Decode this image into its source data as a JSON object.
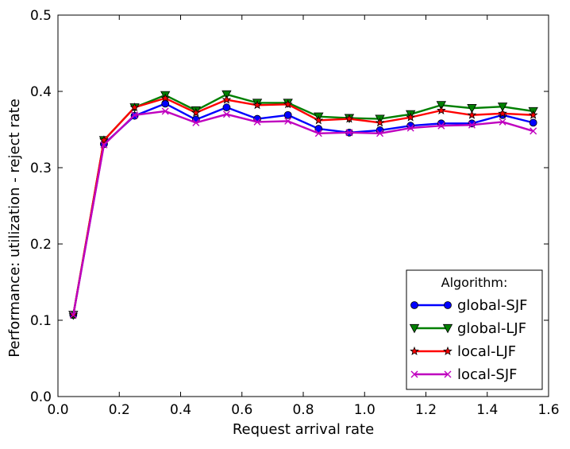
{
  "chart_data": {
    "type": "line",
    "xlabel": "Request arrival rate",
    "ylabel": "Performance: utilization - reject rate",
    "xlim": [
      0.0,
      1.6
    ],
    "ylim": [
      0.0,
      0.5
    ],
    "xticks": [
      "0.0",
      "0.2",
      "0.4",
      "0.6",
      "0.8",
      "1.0",
      "1.2",
      "1.4",
      "1.6"
    ],
    "yticks": [
      "0.0",
      "0.1",
      "0.2",
      "0.3",
      "0.4",
      "0.5"
    ],
    "grid": false,
    "legend": {
      "title": "Algorithm:",
      "placement": "lower-right"
    },
    "x": [
      0.05,
      0.15,
      0.25,
      0.35,
      0.45,
      0.55,
      0.65,
      0.75,
      0.85,
      0.95,
      1.05,
      1.15,
      1.25,
      1.35,
      1.45,
      1.55
    ],
    "series": [
      {
        "name": "global-SJF",
        "color": "#0000ff",
        "marker": "circle",
        "values": [
          0.107,
          0.331,
          0.368,
          0.384,
          0.363,
          0.379,
          0.364,
          0.369,
          0.351,
          0.346,
          0.349,
          0.355,
          0.358,
          0.358,
          0.369,
          0.359
        ]
      },
      {
        "name": "global-LJF",
        "color": "#008000",
        "marker": "triangle-down",
        "values": [
          0.107,
          0.336,
          0.379,
          0.395,
          0.375,
          0.396,
          0.385,
          0.385,
          0.367,
          0.365,
          0.364,
          0.37,
          0.382,
          0.378,
          0.38,
          0.374
        ]
      },
      {
        "name": "local-LJF",
        "color": "#ff0000",
        "marker": "star",
        "values": [
          0.107,
          0.336,
          0.379,
          0.391,
          0.372,
          0.389,
          0.382,
          0.383,
          0.362,
          0.364,
          0.359,
          0.366,
          0.375,
          0.369,
          0.371,
          0.369
        ]
      },
      {
        "name": "local-SJF",
        "color": "#bf00bf",
        "marker": "x",
        "values": [
          0.107,
          0.33,
          0.369,
          0.374,
          0.359,
          0.37,
          0.36,
          0.361,
          0.345,
          0.346,
          0.345,
          0.352,
          0.355,
          0.356,
          0.36,
          0.348
        ]
      }
    ]
  }
}
